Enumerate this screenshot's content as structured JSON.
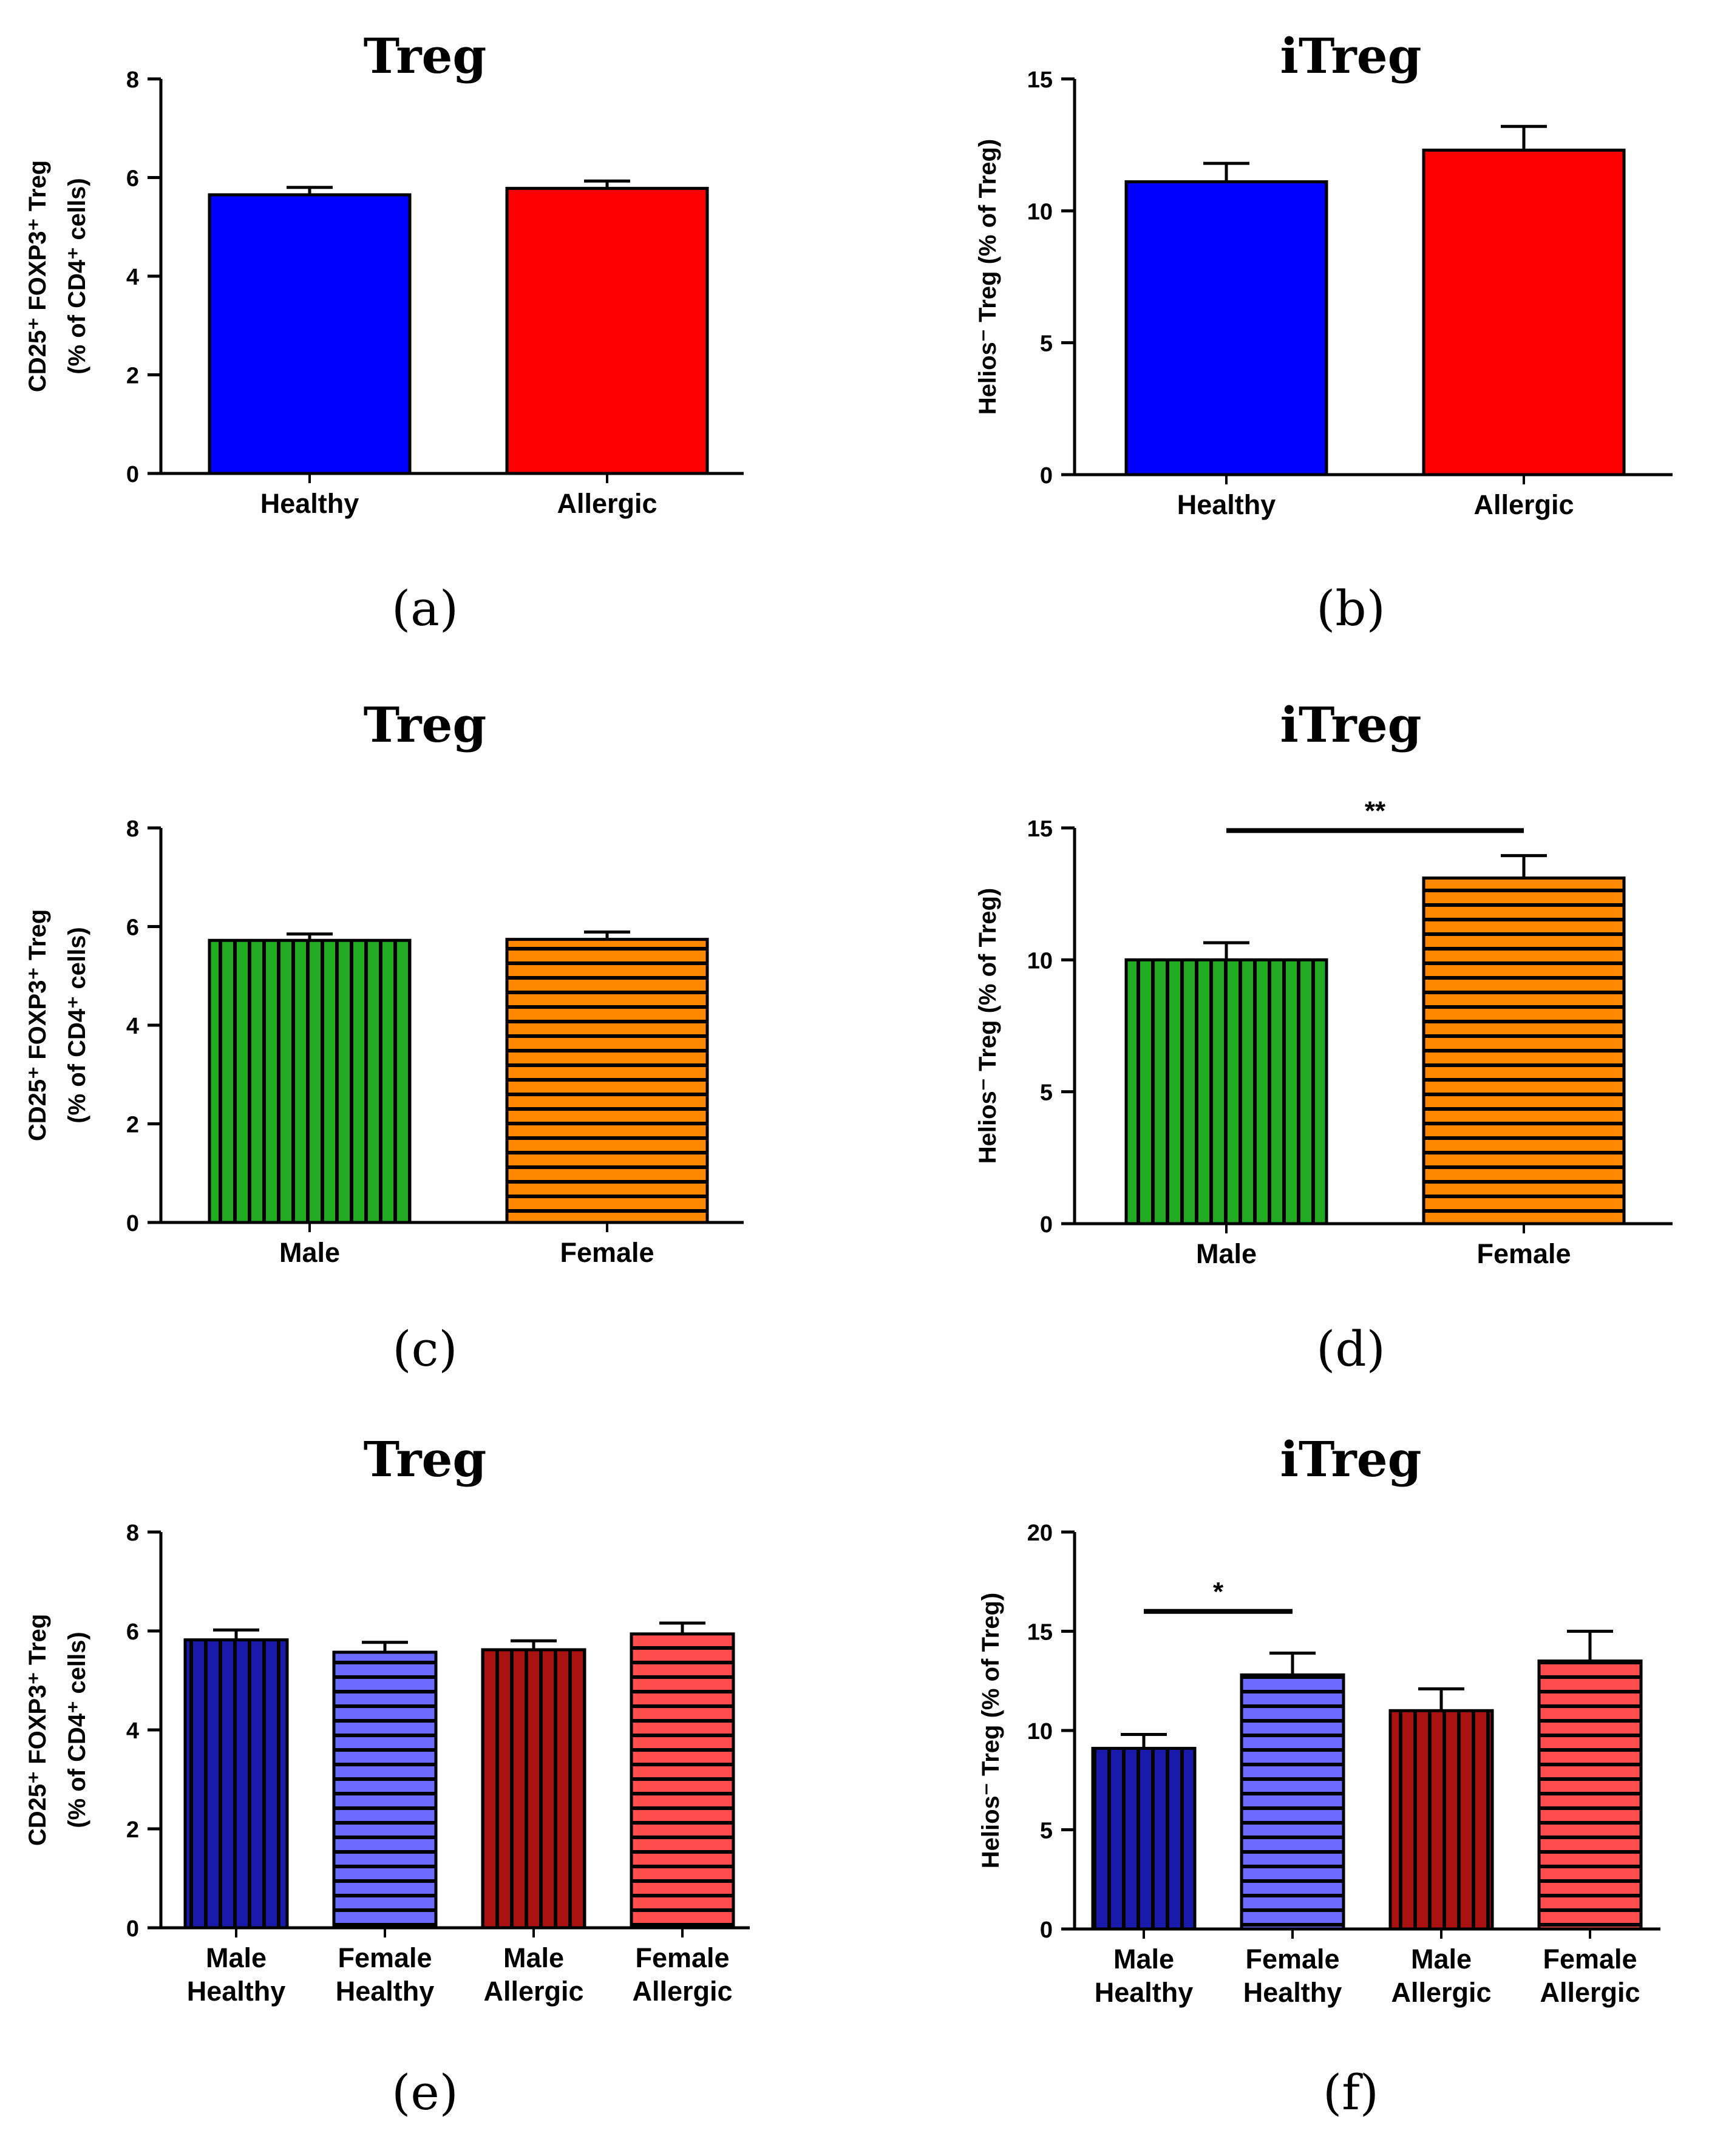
{
  "chart_data": [
    {
      "id": "a",
      "type": "bar",
      "title": "Treg",
      "caption": "(a)",
      "ylabel_line1": "CD25⁺ FOXP3⁺ Treg",
      "ylabel_line2": "(% of CD4⁺ cells)",
      "ylim": [
        0,
        8
      ],
      "yticks": [
        0,
        2,
        4,
        6,
        8
      ],
      "categories": [
        [
          "Healthy"
        ],
        [
          "Allergic"
        ]
      ],
      "values": [
        5.65,
        5.78
      ],
      "errors": [
        0.15,
        0.15
      ],
      "colors": [
        "#0000ff",
        "#ff0000"
      ],
      "patterns": [
        "solid",
        "solid"
      ],
      "significance": []
    },
    {
      "id": "b",
      "type": "bar",
      "title": "iTreg",
      "caption": "(b)",
      "ylabel_line1": "Helios⁻ Treg (% of Treg)",
      "ylabel_line2": "",
      "ylim": [
        0,
        15
      ],
      "yticks": [
        0,
        5,
        10,
        15
      ],
      "categories": [
        [
          "Healthy"
        ],
        [
          "Allergic"
        ]
      ],
      "values": [
        11.1,
        12.3
      ],
      "errors": [
        0.7,
        0.9
      ],
      "colors": [
        "#0000ff",
        "#ff0000"
      ],
      "patterns": [
        "solid",
        "solid"
      ],
      "significance": []
    },
    {
      "id": "c",
      "type": "bar",
      "title": "Treg",
      "caption": "(c)",
      "ylabel_line1": "CD25⁺ FOXP3⁺ Treg",
      "ylabel_line2": "(% of CD4⁺ cells)",
      "ylim": [
        0,
        8
      ],
      "yticks": [
        0,
        2,
        4,
        6,
        8
      ],
      "categories": [
        [
          "Male"
        ],
        [
          "Female"
        ]
      ],
      "values": [
        5.72,
        5.74
      ],
      "errors": [
        0.13,
        0.15
      ],
      "colors": [
        "#22aa22",
        "#ff8800"
      ],
      "patterns": [
        "vertical",
        "horizontal"
      ],
      "significance": []
    },
    {
      "id": "d",
      "type": "bar",
      "title": "iTreg",
      "caption": "(d)",
      "ylabel_line1": "Helios⁻ Treg (% of Treg)",
      "ylabel_line2": "",
      "ylim": [
        0,
        15
      ],
      "yticks": [
        0,
        5,
        10,
        15
      ],
      "categories": [
        [
          "Male"
        ],
        [
          "Female"
        ]
      ],
      "values": [
        10.0,
        13.1
      ],
      "errors": [
        0.65,
        0.85
      ],
      "colors": [
        "#22aa22",
        "#ff8800"
      ],
      "patterns": [
        "vertical",
        "horizontal"
      ],
      "significance": [
        {
          "from": 0,
          "to": 1,
          "y": 14.9,
          "label": "**"
        }
      ]
    },
    {
      "id": "e",
      "type": "bar",
      "title": "Treg",
      "caption": "(e)",
      "ylabel_line1": "CD25⁺ FOXP3⁺ Treg",
      "ylabel_line2": "(% of CD4⁺ cells)",
      "ylim": [
        0,
        8
      ],
      "yticks": [
        0,
        2,
        4,
        6,
        8
      ],
      "categories": [
        [
          "Male",
          "Healthy"
        ],
        [
          "Female",
          "Healthy"
        ],
        [
          "Male",
          "Allergic"
        ],
        [
          "Female",
          "Allergic"
        ]
      ],
      "values": [
        5.82,
        5.57,
        5.62,
        5.94
      ],
      "errors": [
        0.2,
        0.2,
        0.18,
        0.22
      ],
      "colors": [
        "#1a1aaa",
        "#6b6bff",
        "#aa1111",
        "#ff4d4d"
      ],
      "patterns": [
        "vertical",
        "horizontal",
        "vertical",
        "horizontal"
      ],
      "significance": []
    },
    {
      "id": "f",
      "type": "bar",
      "title": "iTreg",
      "caption": "(f)",
      "ylabel_line1": "Helios⁻ Treg (% of Treg)",
      "ylabel_line2": "",
      "ylim": [
        0,
        20
      ],
      "yticks": [
        0,
        5,
        10,
        15,
        20
      ],
      "categories": [
        [
          "Male",
          "Healthy"
        ],
        [
          "Female",
          "Healthy"
        ],
        [
          "Male",
          "Allergic"
        ],
        [
          "Female",
          "Allergic"
        ]
      ],
      "values": [
        9.1,
        12.8,
        11.0,
        13.5
      ],
      "errors": [
        0.7,
        1.1,
        1.1,
        1.5
      ],
      "colors": [
        "#1a1aaa",
        "#6b6bff",
        "#aa1111",
        "#ff4d4d"
      ],
      "patterns": [
        "vertical",
        "horizontal",
        "vertical",
        "horizontal"
      ],
      "significance": [
        {
          "from": 0,
          "to": 1,
          "y": 16.0,
          "label": "*"
        }
      ]
    }
  ]
}
